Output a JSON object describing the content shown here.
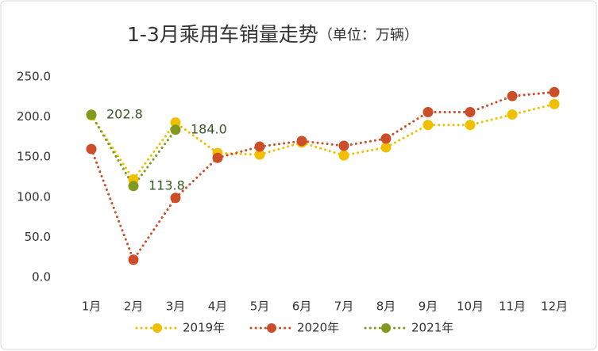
{
  "chart_data": {
    "type": "line",
    "title": "1-3月乘用车销量走势",
    "subtitle": "（单位：万辆）",
    "categories": [
      "1月",
      "2月",
      "3月",
      "4月",
      "5月",
      "6月",
      "7月",
      "8月",
      "9月",
      "10月",
      "11月",
      "12月"
    ],
    "series": [
      {
        "name": "2019年",
        "color": "#f0c000",
        "values": [
          202,
          122,
          193,
          155,
          153,
          168,
          152,
          162,
          190,
          190,
          203,
          216
        ]
      },
      {
        "name": "2020年",
        "color": "#cc4e28",
        "values": [
          160,
          22,
          99,
          149,
          163,
          170,
          164,
          173,
          206,
          206,
          226,
          231
        ]
      },
      {
        "name": "2021年",
        "color": "#7f9a1f",
        "values": [
          202.8,
          113.8,
          184.0,
          null,
          null,
          null,
          null,
          null,
          null,
          null,
          null,
          null
        ],
        "value_labels": [
          "202.8",
          "113.8",
          "184.0",
          null,
          null,
          null,
          null,
          null,
          null,
          null,
          null,
          null
        ]
      }
    ],
    "ylim": [
      0,
      250
    ],
    "yticks": [
      {
        "value": 0,
        "label": "0.0"
      },
      {
        "value": 50,
        "label": "50.0"
      },
      {
        "value": 100,
        "label": "100.0"
      },
      {
        "value": 150,
        "label": "150.0"
      },
      {
        "value": 200,
        "label": "200.0"
      },
      {
        "value": 250,
        "label": "250.0"
      }
    ],
    "legend": "bottom"
  }
}
